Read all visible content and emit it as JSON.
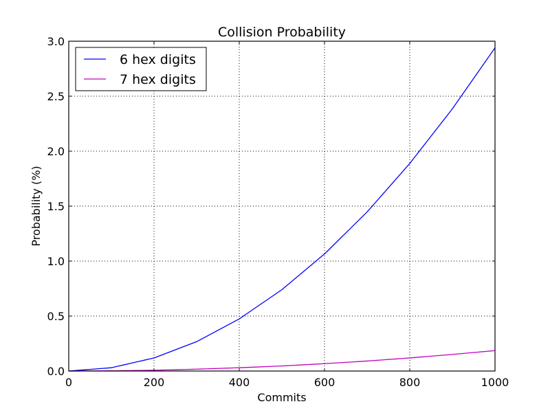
{
  "chart_data": {
    "type": "line",
    "title": "Collision Probability",
    "xlabel": "Commits",
    "ylabel": "Probability (%)",
    "xlim": [
      0,
      1000
    ],
    "ylim": [
      0,
      3.0
    ],
    "xticks": [
      0,
      200,
      400,
      600,
      800,
      1000
    ],
    "xtick_labels": [
      "0",
      "200",
      "400",
      "600",
      "800",
      "1000"
    ],
    "yticks": [
      0,
      0.5,
      1.0,
      1.5,
      2.0,
      2.5,
      3.0
    ],
    "ytick_labels": [
      "0.0",
      "0.5",
      "1.0",
      "1.5",
      "2.0",
      "2.5",
      "3.0"
    ],
    "grid": true,
    "legend_position": "top-left",
    "x": [
      0,
      100,
      200,
      300,
      400,
      500,
      600,
      700,
      800,
      900,
      1000
    ],
    "series": [
      {
        "name": "6 hex digits",
        "color": "#0000ff",
        "values": [
          0,
          0.03,
          0.119,
          0.267,
          0.474,
          0.74,
          1.065,
          1.447,
          1.888,
          2.385,
          2.94
        ]
      },
      {
        "name": "7 hex digits",
        "color": "#bf00bf",
        "values": [
          0,
          0.002,
          0.007,
          0.017,
          0.03,
          0.046,
          0.067,
          0.091,
          0.119,
          0.151,
          0.186
        ]
      }
    ]
  }
}
